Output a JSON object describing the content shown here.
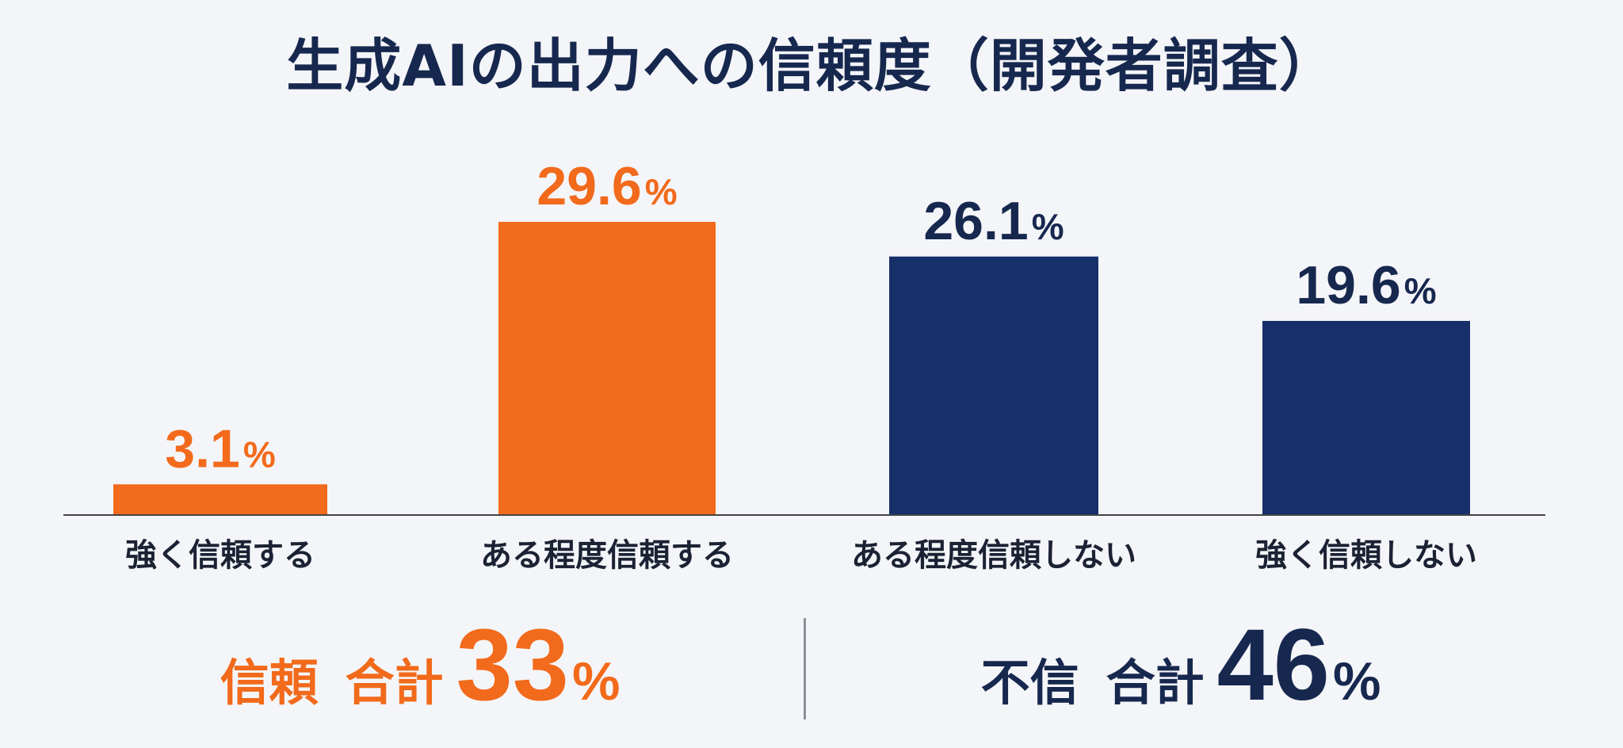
{
  "chart_data": {
    "type": "bar",
    "title": "生成AIの出力への信頼度（開発者調査）",
    "categories": [
      "強く信頼する",
      "ある程度信頼する",
      "ある程度信頼しない",
      "強く信頼しない"
    ],
    "values": [
      3.1,
      29.6,
      26.1,
      19.6
    ],
    "value_labels": [
      "3.1",
      "29.6",
      "26.1",
      "19.6"
    ],
    "unit": "%",
    "bar_colors": [
      "#f26a1b",
      "#f26a1b",
      "#17306a",
      "#17306a"
    ],
    "label_colors": [
      "#f26a1b",
      "#f26a1b",
      "#17284f",
      "#17284f"
    ],
    "ylim": [
      0,
      29.6
    ],
    "grid": false
  },
  "summary": {
    "trust": {
      "label": "信頼",
      "sub": "合計",
      "value": "33",
      "unit": "%",
      "color": "#f26a1b"
    },
    "distrust": {
      "label": "不信",
      "sub": "合計",
      "value": "46",
      "unit": "%",
      "color": "#17284f"
    }
  }
}
